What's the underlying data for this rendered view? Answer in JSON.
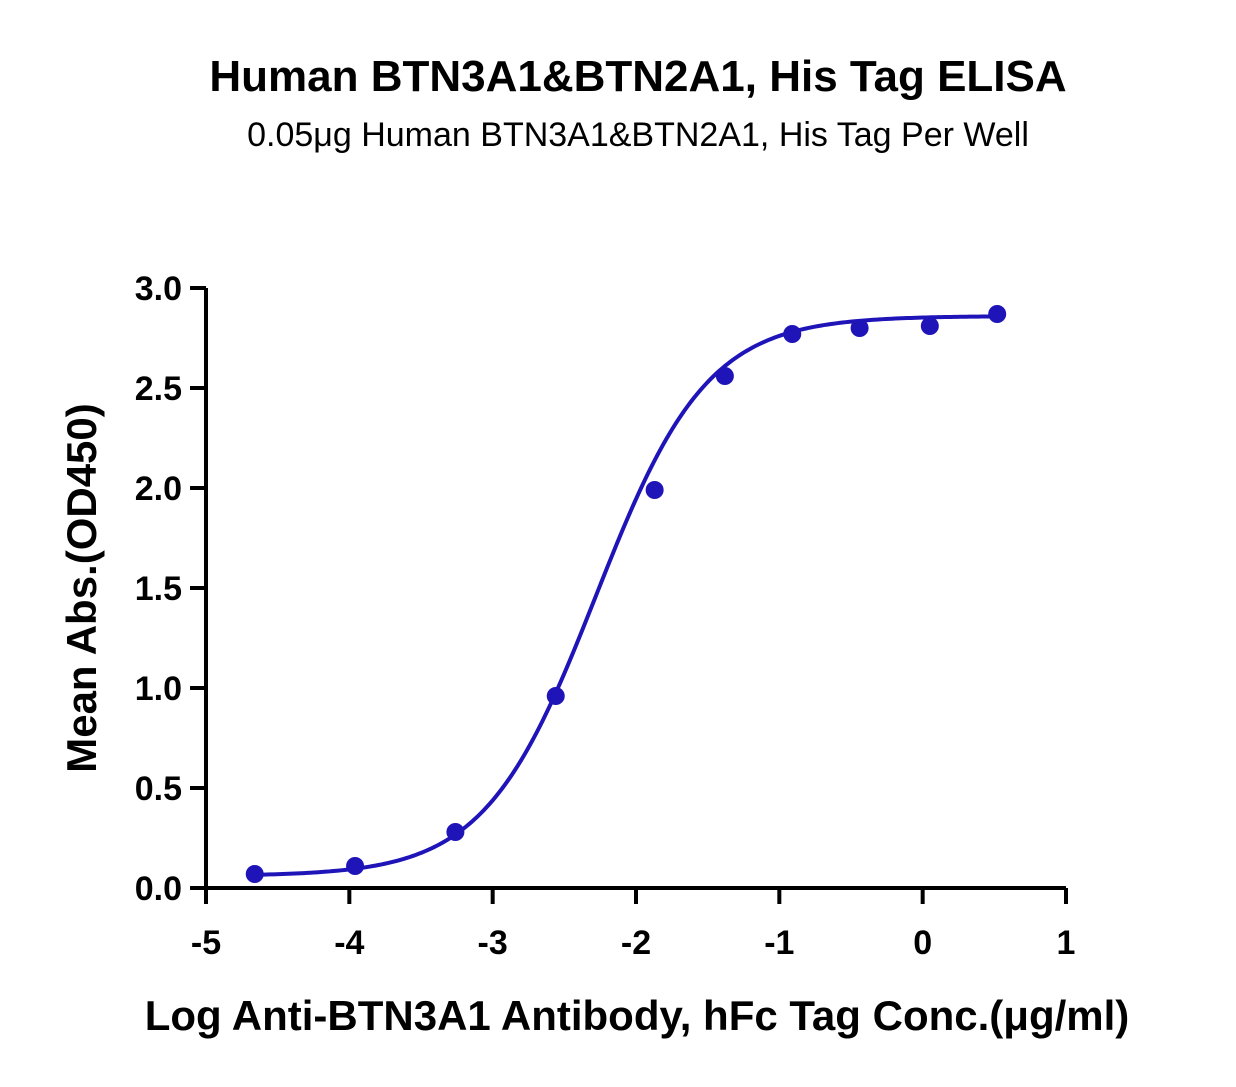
{
  "chart_data": {
    "type": "scatter",
    "title": "Human BTN3A1&BTN2A1, His Tag ELISA",
    "subtitle": "0.05μg Human BTN3A1&BTN2A1, His Tag Per Well",
    "xlabel": "Log Anti-BTN3A1 Antibody, hFc Tag Conc.(μg/ml)",
    "ylabel": "Mean Abs.(OD450)",
    "xlim": [
      -5,
      1
    ],
    "ylim": [
      0,
      3.0
    ],
    "x_ticks": [
      "-5",
      "-4",
      "-3",
      "-2",
      "-1",
      "0",
      "1"
    ],
    "y_ticks": [
      "0.0",
      "0.5",
      "1.0",
      "1.5",
      "2.0",
      "2.5",
      "3.0"
    ],
    "grid": false,
    "color": "#1f14b8",
    "series": [
      {
        "x": [
          -4.66,
          -3.96,
          -3.26,
          -2.56,
          -1.87,
          -1.38,
          -0.91,
          -0.44,
          0.05,
          0.52
        ],
        "values": [
          0.07,
          0.11,
          0.28,
          0.96,
          1.99,
          2.56,
          2.77,
          2.8,
          2.81,
          2.87
        ],
        "fit": {
          "model": "4PL",
          "bottom": 0.06,
          "top": 2.86,
          "logEC50": -2.28,
          "hill": 1.12
        }
      }
    ]
  }
}
